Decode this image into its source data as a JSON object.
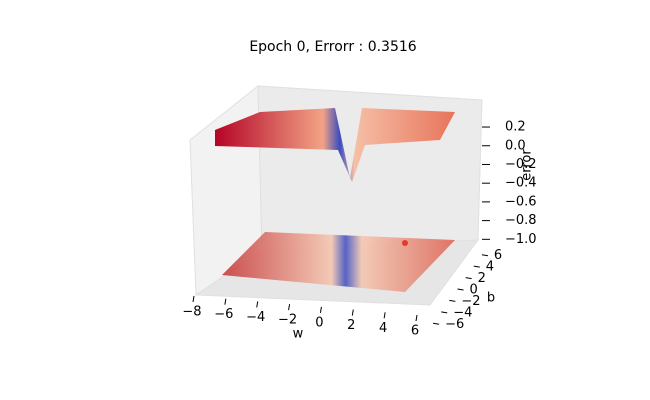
{
  "chart_data": {
    "type": "surface3d",
    "title": "Epoch  0, Errorr : 0.3516",
    "xlabel": "w",
    "ylabel": "b",
    "zlabel": "error",
    "xlim": [
      -8,
      6
    ],
    "ylim": [
      -7,
      7
    ],
    "zlim": [
      -1.05,
      0.35
    ],
    "xticks": [
      {
        "value": -8,
        "label": "−8"
      },
      {
        "value": -6,
        "label": "−6"
      },
      {
        "value": -4,
        "label": "−4"
      },
      {
        "value": -2,
        "label": "−2"
      },
      0,
      2,
      4,
      6
    ],
    "yticks": [
      {
        "value": -6,
        "label": "−6"
      },
      {
        "value": -4,
        "label": "−4"
      },
      {
        "value": -2,
        "label": "−2"
      },
      0,
      2,
      4,
      6
    ],
    "zticks": [
      0.2,
      {
        "value": 0,
        "label": "0.0"
      },
      {
        "value": -0.2,
        "label": "−0.2"
      },
      {
        "value": -0.4,
        "label": "−0.4"
      },
      {
        "value": -0.6,
        "label": "−0.6"
      },
      {
        "value": -0.8,
        "label": "−0.8"
      },
      {
        "value": -1.0,
        "label": "−1.0"
      }
    ]
  }
}
